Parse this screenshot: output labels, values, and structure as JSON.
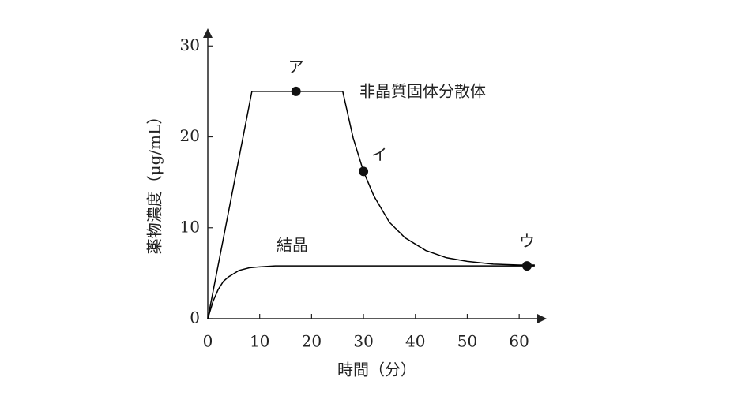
{
  "chart_data": {
    "type": "line",
    "x_label": "時間（分）",
    "y_label": "薬物濃度（μg/mL）",
    "xlim": [
      0,
      65
    ],
    "ylim": [
      0,
      31.5
    ],
    "xticks": [
      0,
      10,
      20,
      30,
      40,
      50,
      60
    ],
    "yticks": [
      0,
      10,
      20,
      30
    ],
    "series": [
      {
        "name": "非晶質固体分散体",
        "color": "#000000",
        "x": [
          0,
          8.5,
          26,
          28,
          30,
          32,
          35,
          38,
          42,
          46,
          50,
          55,
          60,
          63
        ],
        "values": [
          0,
          25,
          25,
          19.9,
          16.2,
          13.5,
          10.6,
          8.9,
          7.5,
          6.7,
          6.3,
          6.0,
          5.9,
          5.9
        ]
      },
      {
        "name": "結晶",
        "color": "#000000",
        "x": [
          0,
          1,
          2,
          3,
          4,
          6,
          8,
          10,
          13,
          63
        ],
        "values": [
          0,
          1.9,
          3.2,
          4.1,
          4.6,
          5.3,
          5.6,
          5.7,
          5.8,
          5.8
        ]
      }
    ],
    "points": [
      {
        "label": "ア",
        "x": 17,
        "y": 25
      },
      {
        "label": "イ",
        "x": 30,
        "y": 16.2
      },
      {
        "label": "ウ",
        "x": 61.5,
        "y": 5.8
      }
    ]
  }
}
